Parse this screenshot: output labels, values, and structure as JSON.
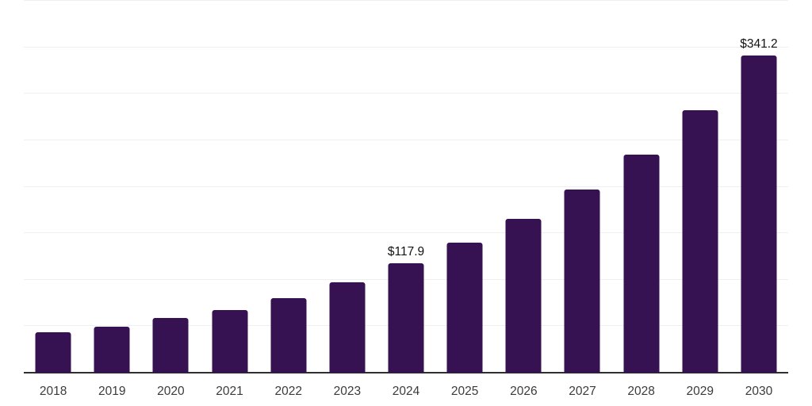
{
  "chart_data": {
    "type": "bar",
    "title": "",
    "xlabel": "",
    "ylabel": "",
    "categories": [
      "2018",
      "2019",
      "2020",
      "2021",
      "2022",
      "2023",
      "2024",
      "2025",
      "2026",
      "2027",
      "2028",
      "2029",
      "2030"
    ],
    "values": [
      43.8,
      49.5,
      59.2,
      67.1,
      80.1,
      97.1,
      117.9,
      139.7,
      165.8,
      197.3,
      234.8,
      282.5,
      341.2
    ],
    "value_labels": [
      "",
      "",
      "",
      "",
      "",
      "",
      "$117.9",
      "",
      "",
      "",
      "",
      "",
      "$341.2"
    ],
    "ylim": [
      0,
      400
    ],
    "grid_step": 50,
    "gridlines": "horizontal",
    "y_tick_labels_visible": false,
    "legend": "none",
    "unit_prefix": "$"
  },
  "style": {
    "background_color": "#ffffff",
    "bar_color": "#371253",
    "axis_line_color": "#2f2f2f",
    "gridline_color": "#efefef",
    "tick_label_color": "#3b3b3b",
    "value_label_color": "#121212"
  }
}
